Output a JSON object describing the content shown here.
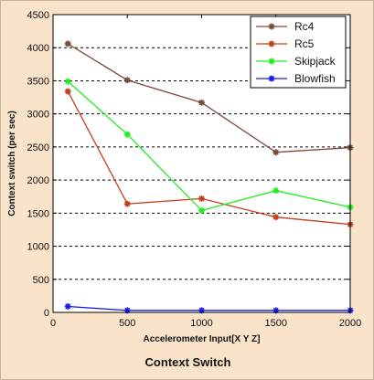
{
  "caption": "Context Switch",
  "chart_data": {
    "type": "line",
    "title": "",
    "xlabel": "Accelerometer Input[X Y Z]",
    "ylabel": "Context switch (per sec)",
    "x": [
      100,
      500,
      1000,
      1500,
      2000
    ],
    "xlim": [
      0,
      2000
    ],
    "ylim": [
      0,
      4500
    ],
    "xticks": [
      0,
      500,
      1000,
      1500,
      2000
    ],
    "yticks": [
      0,
      500,
      1000,
      1500,
      2000,
      2500,
      3000,
      3500,
      4000,
      4500
    ],
    "grid": "horizontal dashed",
    "legend_position": "top-right",
    "series": [
      {
        "name": "Rc4",
        "color": "#7b4a3a",
        "marker": "star",
        "values": [
          4060,
          3510,
          3170,
          2420,
          2490
        ]
      },
      {
        "name": "Rc5",
        "color": "#c0401a",
        "marker": "star",
        "values": [
          3340,
          1640,
          1720,
          1440,
          1330
        ]
      },
      {
        "name": "Skipjack",
        "color": "#22ee22",
        "marker": "star",
        "values": [
          3490,
          2690,
          1540,
          1840,
          1590
        ]
      },
      {
        "name": "Blowfish",
        "color": "#1a1aee",
        "marker": "star",
        "values": [
          90,
          30,
          30,
          30,
          30
        ]
      }
    ]
  }
}
